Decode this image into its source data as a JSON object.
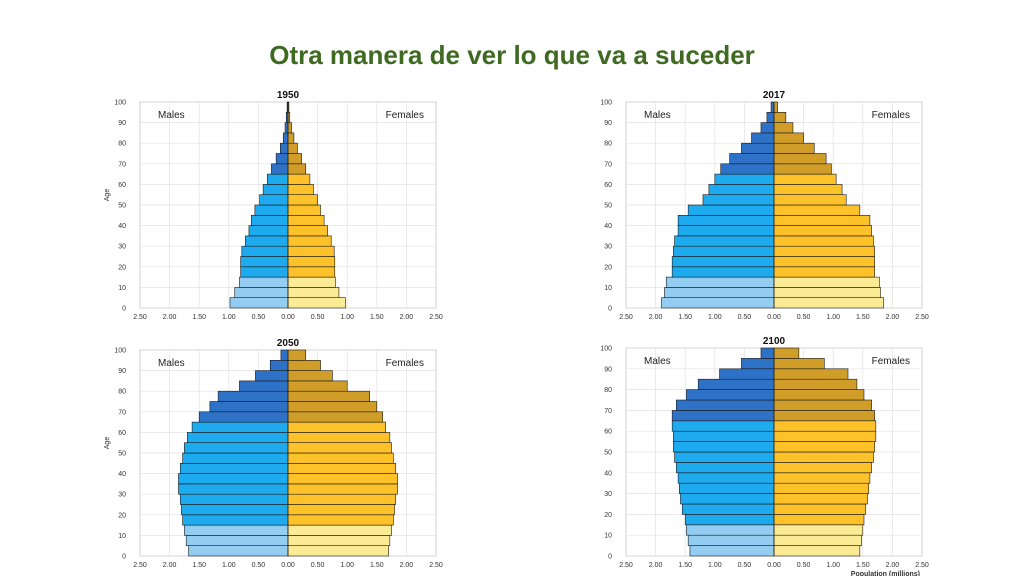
{
  "slide": {
    "title": "Otra manera de ver lo que va a suceder"
  },
  "colors": {
    "male_young": "#93cdf2",
    "male_adult": "#1eaaee",
    "male_old": "#2e72c8",
    "female_young": "#fbeb94",
    "female_adult": "#fdc12a",
    "female_old": "#d09e28",
    "title_green": "#3f6a22"
  },
  "chart_data": [
    {
      "type": "bar",
      "subtype": "population-pyramid",
      "title": "1950",
      "left_label": "Males",
      "right_label": "Females",
      "ylabel": "Age",
      "xlabel": "",
      "x_ticks": [
        "2.50",
        "2.00",
        "1.50",
        "1.00",
        "0.50",
        "0.00",
        "0.50",
        "1.00",
        "1.50",
        "2.00",
        "2.50"
      ],
      "y_ticks": [
        "0",
        "10",
        "20",
        "30",
        "40",
        "50",
        "60",
        "70",
        "80",
        "90",
        "100"
      ],
      "xlim": [
        -2.5,
        2.5
      ],
      "ylim": [
        0,
        100
      ],
      "age_groups_start": [
        0,
        5,
        10,
        15,
        20,
        25,
        30,
        35,
        40,
        45,
        50,
        55,
        60,
        65,
        70,
        75,
        80,
        85,
        90,
        95
      ],
      "series": [
        {
          "name": "Males",
          "values": [
            0.98,
            0.9,
            0.82,
            0.8,
            0.8,
            0.78,
            0.72,
            0.66,
            0.62,
            0.56,
            0.48,
            0.42,
            0.35,
            0.28,
            0.2,
            0.13,
            0.08,
            0.05,
            0.03,
            0.015
          ]
        },
        {
          "name": "Females",
          "values": [
            0.97,
            0.86,
            0.8,
            0.79,
            0.79,
            0.78,
            0.73,
            0.67,
            0.61,
            0.55,
            0.5,
            0.43,
            0.37,
            0.3,
            0.23,
            0.16,
            0.1,
            0.06,
            0.03,
            0.015
          ]
        }
      ]
    },
    {
      "type": "bar",
      "subtype": "population-pyramid",
      "title": "2017",
      "left_label": "Males",
      "right_label": "Females",
      "ylabel": "",
      "xlabel": "",
      "x_ticks": [
        "2.50",
        "2.00",
        "1.50",
        "1.00",
        "0.50",
        "0.00",
        "0.50",
        "1.00",
        "1.50",
        "2.00",
        "2.50"
      ],
      "y_ticks": [
        "0",
        "10",
        "20",
        "30",
        "40",
        "50",
        "60",
        "70",
        "80",
        "90",
        "100"
      ],
      "xlim": [
        -2.5,
        2.5
      ],
      "ylim": [
        0,
        100
      ],
      "age_groups_start": [
        0,
        5,
        10,
        15,
        20,
        25,
        30,
        35,
        40,
        45,
        50,
        55,
        60,
        65,
        70,
        75,
        80,
        85,
        90,
        95
      ],
      "series": [
        {
          "name": "Males",
          "values": [
            1.9,
            1.85,
            1.82,
            1.72,
            1.72,
            1.7,
            1.68,
            1.62,
            1.62,
            1.45,
            1.2,
            1.1,
            1.0,
            0.9,
            0.75,
            0.55,
            0.38,
            0.22,
            0.12,
            0.05
          ]
        },
        {
          "name": "Females",
          "values": [
            1.85,
            1.8,
            1.78,
            1.7,
            1.7,
            1.7,
            1.68,
            1.65,
            1.62,
            1.45,
            1.22,
            1.15,
            1.05,
            0.97,
            0.88,
            0.68,
            0.5,
            0.32,
            0.2,
            0.06
          ]
        }
      ]
    },
    {
      "type": "bar",
      "subtype": "population-pyramid",
      "title": "2050",
      "left_label": "Males",
      "right_label": "Females",
      "ylabel": "Age",
      "xlabel": "",
      "x_ticks": [
        "2.50",
        "2.00",
        "1.50",
        "1.00",
        "0.50",
        "0.00",
        "0.50",
        "1.00",
        "1.50",
        "2.00",
        "2.50"
      ],
      "y_ticks": [
        "0",
        "10",
        "20",
        "30",
        "40",
        "50",
        "60",
        "70",
        "80",
        "90",
        "100"
      ],
      "xlim": [
        -2.5,
        2.5
      ],
      "ylim": [
        0,
        100
      ],
      "age_groups_start": [
        0,
        5,
        10,
        15,
        20,
        25,
        30,
        35,
        40,
        45,
        50,
        55,
        60,
        65,
        70,
        75,
        80,
        85,
        90,
        95
      ],
      "series": [
        {
          "name": "Males",
          "values": [
            1.68,
            1.72,
            1.75,
            1.78,
            1.8,
            1.82,
            1.85,
            1.85,
            1.82,
            1.78,
            1.75,
            1.7,
            1.62,
            1.5,
            1.32,
            1.18,
            0.82,
            0.55,
            0.3,
            0.12
          ]
        },
        {
          "name": "Females",
          "values": [
            1.7,
            1.72,
            1.75,
            1.78,
            1.8,
            1.82,
            1.85,
            1.85,
            1.82,
            1.78,
            1.75,
            1.72,
            1.65,
            1.6,
            1.5,
            1.38,
            1.0,
            0.75,
            0.55,
            0.3
          ]
        }
      ]
    },
    {
      "type": "bar",
      "subtype": "population-pyramid",
      "title": "2100",
      "left_label": "Males",
      "right_label": "Females",
      "ylabel": "",
      "xlabel": "Population (millions)",
      "x_ticks": [
        "2.50",
        "2.00",
        "1.50",
        "1.00",
        "0.50",
        "0.00",
        "0.50",
        "1.00",
        "1.50",
        "2.00",
        "2.50"
      ],
      "y_ticks": [
        "0",
        "10",
        "20",
        "30",
        "40",
        "50",
        "60",
        "70",
        "80",
        "90",
        "100"
      ],
      "xlim": [
        -2.5,
        2.5
      ],
      "ylim": [
        0,
        100
      ],
      "age_groups_start": [
        0,
        5,
        10,
        15,
        20,
        25,
        30,
        35,
        40,
        45,
        50,
        55,
        60,
        65,
        70,
        75,
        80,
        85,
        90,
        95
      ],
      "series": [
        {
          "name": "Males",
          "values": [
            1.42,
            1.45,
            1.48,
            1.5,
            1.55,
            1.58,
            1.6,
            1.62,
            1.65,
            1.68,
            1.7,
            1.7,
            1.72,
            1.72,
            1.65,
            1.48,
            1.28,
            0.92,
            0.55,
            0.22
          ]
        },
        {
          "name": "Females",
          "values": [
            1.45,
            1.48,
            1.5,
            1.52,
            1.55,
            1.58,
            1.6,
            1.62,
            1.65,
            1.68,
            1.7,
            1.72,
            1.72,
            1.7,
            1.65,
            1.52,
            1.4,
            1.25,
            0.85,
            0.42
          ]
        }
      ]
    }
  ]
}
